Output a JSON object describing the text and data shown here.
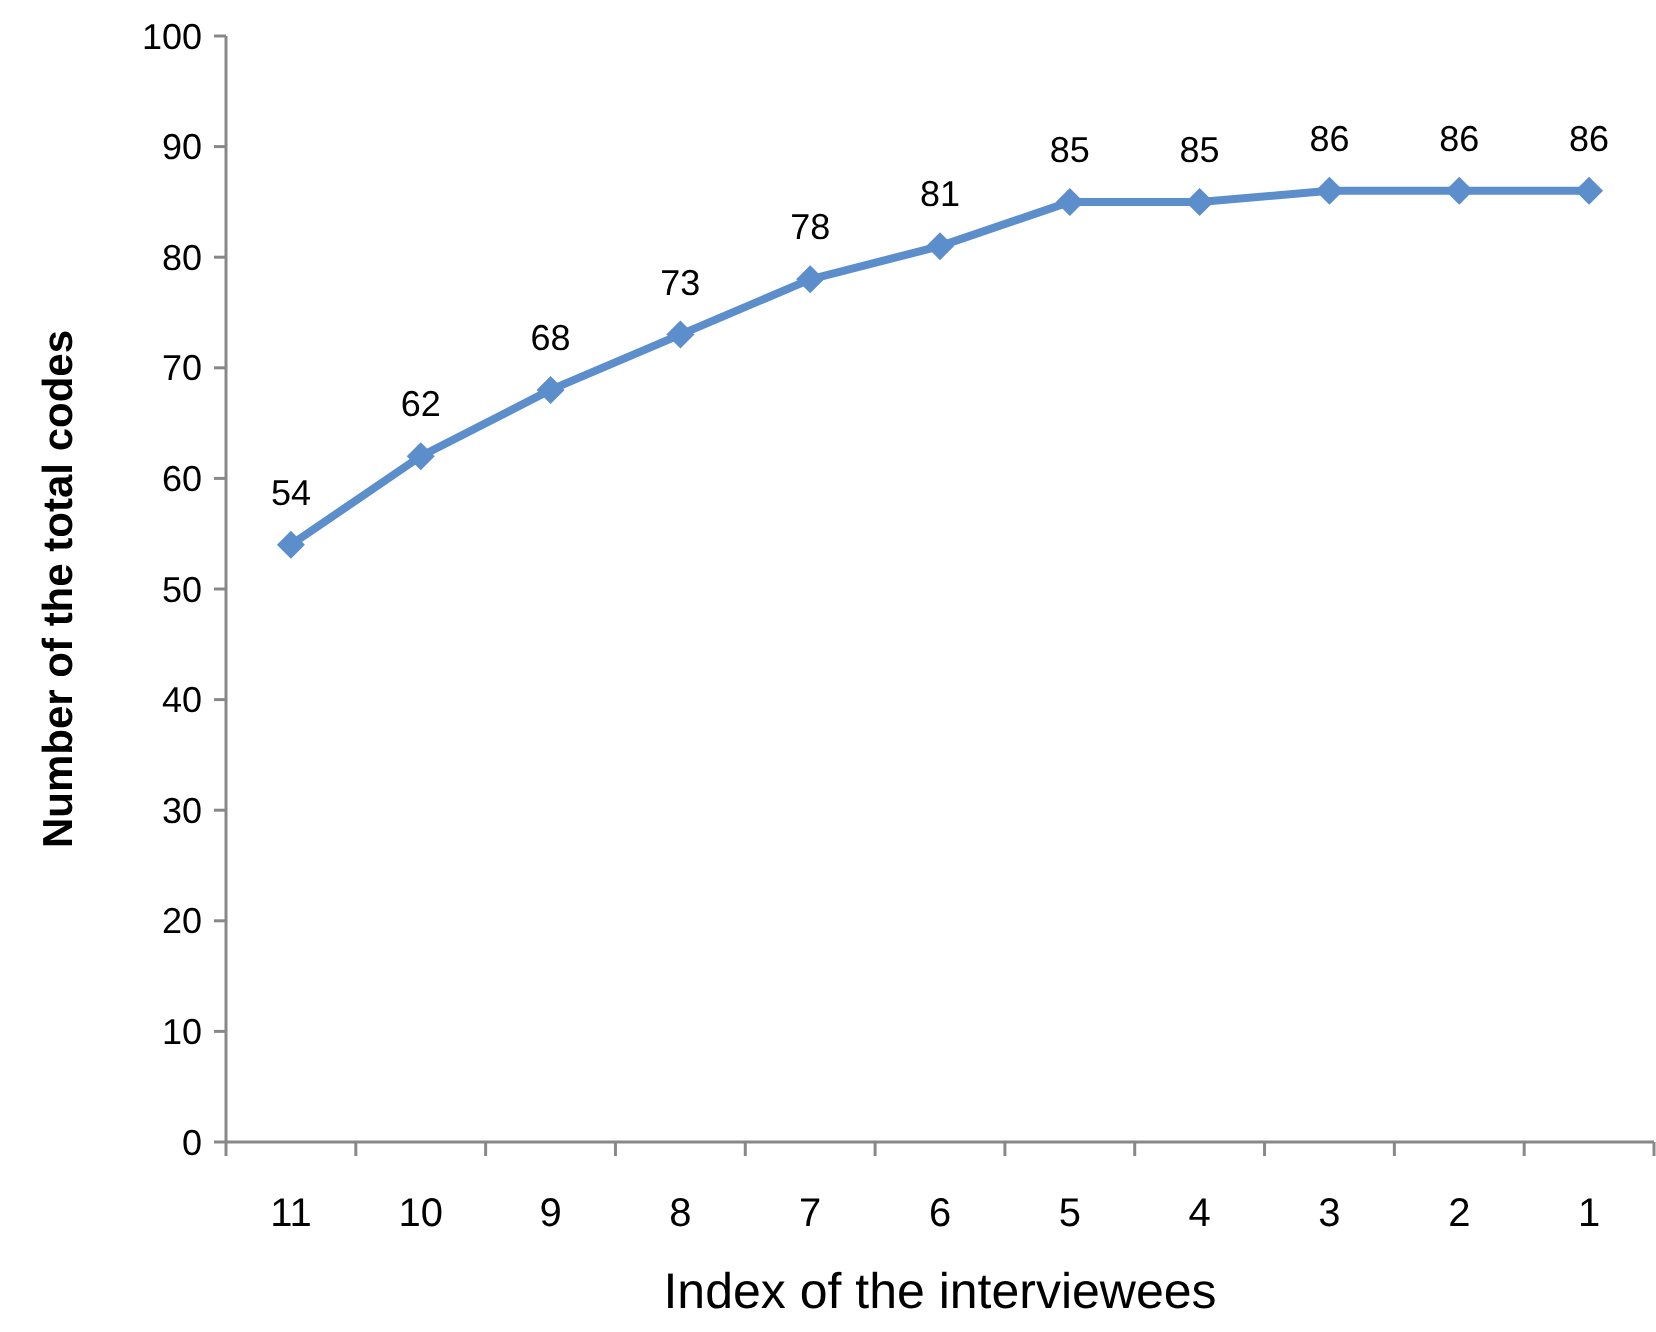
{
  "chart_data": {
    "type": "line",
    "xlabel": "Index of the interviewees",
    "ylabel": "Number of the total codes",
    "categories": [
      "11",
      "10",
      "9",
      "8",
      "7",
      "6",
      "5",
      "4",
      "3",
      "2",
      "1"
    ],
    "series": [
      {
        "color": "#5b8ecb",
        "values": [
          54,
          62,
          68,
          73,
          78,
          81,
          85,
          85,
          86,
          86,
          86
        ]
      }
    ],
    "ylim": [
      0,
      100
    ],
    "yticks": [
      0,
      10,
      20,
      30,
      40,
      50,
      60,
      70,
      80,
      90,
      100
    ],
    "grid": false,
    "marker": "diamond",
    "line_style": "solid",
    "data_labels": true
  }
}
